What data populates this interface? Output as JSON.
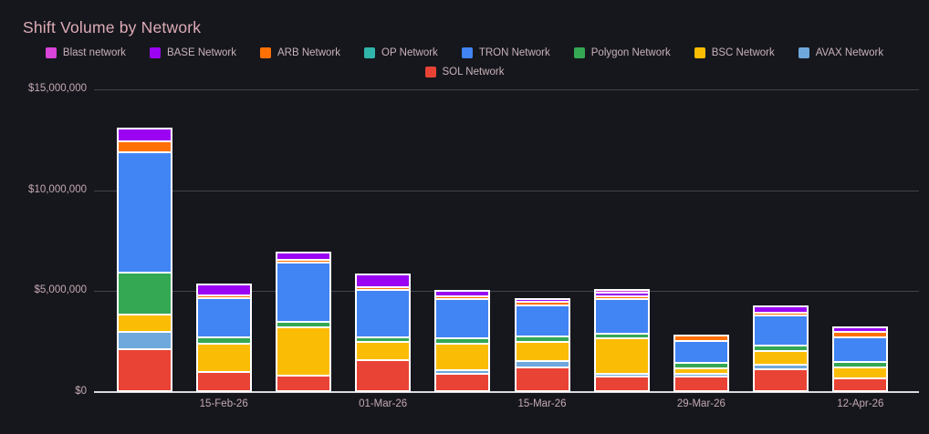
{
  "title": "Shift Volume by Network",
  "legend": {
    "items": [
      {
        "label": "Blast network",
        "color": "#d944d9"
      },
      {
        "label": "BASE Network",
        "color": "#9a04f2"
      },
      {
        "label": "ARB Network",
        "color": "#ff7104"
      },
      {
        "label": "OP Network",
        "color": "#31b5ab"
      },
      {
        "label": "TRON Network",
        "color": "#4184f4"
      },
      {
        "label": "Polygon Network",
        "color": "#34a853"
      },
      {
        "label": "BSC Network",
        "color": "#fbbc05"
      },
      {
        "label": "AVAX Network",
        "color": "#6fa8dc"
      },
      {
        "label": "SOL Network",
        "color": "#e94335"
      }
    ]
  },
  "chart_data": {
    "type": "bar",
    "stacked": true,
    "title": "Shift Volume by Network",
    "xlabel": "",
    "ylabel": "",
    "unit": "USD",
    "ylim": [
      0,
      15000000
    ],
    "grid": true,
    "legend_position": "top-center",
    "bar_count": 10,
    "y_ticks": [
      {
        "label": "$0",
        "value": 0
      },
      {
        "label": "$5,000,000",
        "value": 5000000
      },
      {
        "label": "$10,000,000",
        "value": 10000000
      },
      {
        "label": "$15,000,000",
        "value": 15000000
      }
    ],
    "x_ticks": [
      {
        "label": "15-Feb-26",
        "bar_index": 1
      },
      {
        "label": "01-Mar-26",
        "bar_index": 3
      },
      {
        "label": "15-Mar-26",
        "bar_index": 5
      },
      {
        "label": "29-Mar-26",
        "bar_index": 7
      },
      {
        "label": "12-Apr-26",
        "bar_index": 9
      }
    ],
    "stack_order_bottom_to_top": [
      "SOL Network",
      "AVAX Network",
      "BSC Network",
      "Polygon Network",
      "TRON Network",
      "OP Network",
      "ARB Network",
      "BASE Network",
      "Blast network"
    ],
    "series": [
      {
        "name": "Blast network",
        "color": "#d944d9",
        "values": [
          0,
          0,
          0,
          0,
          0,
          0,
          50000,
          0,
          0,
          0
        ]
      },
      {
        "name": "BASE Network",
        "color": "#9a04f2",
        "values": [
          600000,
          520000,
          350000,
          600000,
          250000,
          150000,
          160000,
          0,
          300000,
          200000
        ]
      },
      {
        "name": "ARB Network",
        "color": "#ff7104",
        "values": [
          550000,
          150000,
          110000,
          150000,
          140000,
          170000,
          120000,
          300000,
          140000,
          270000
        ]
      },
      {
        "name": "OP Network",
        "color": "#31b5ab",
        "values": [
          0,
          0,
          0,
          0,
          0,
          0,
          0,
          0,
          0,
          0
        ]
      },
      {
        "name": "TRON Network",
        "color": "#4184f4",
        "values": [
          6000000,
          1950000,
          2950000,
          2350000,
          1950000,
          1550000,
          1700000,
          1080000,
          1500000,
          1250000
        ]
      },
      {
        "name": "Polygon Network",
        "color": "#34a853",
        "values": [
          2050000,
          300000,
          250000,
          250000,
          280000,
          280000,
          260000,
          260000,
          280000,
          260000
        ]
      },
      {
        "name": "BSC Network",
        "color": "#fbbc05",
        "values": [
          900000,
          1400000,
          2400000,
          900000,
          1300000,
          950000,
          1750000,
          260000,
          670000,
          550000
        ]
      },
      {
        "name": "AVAX Network",
        "color": "#6fa8dc",
        "values": [
          850000,
          0,
          0,
          0,
          170000,
          300000,
          140000,
          120000,
          250000,
          0
        ]
      },
      {
        "name": "SOL Network",
        "color": "#e94335",
        "values": [
          2050000,
          950000,
          750000,
          1500000,
          850000,
          1150000,
          700000,
          720000,
          1050000,
          600000
        ]
      }
    ]
  }
}
